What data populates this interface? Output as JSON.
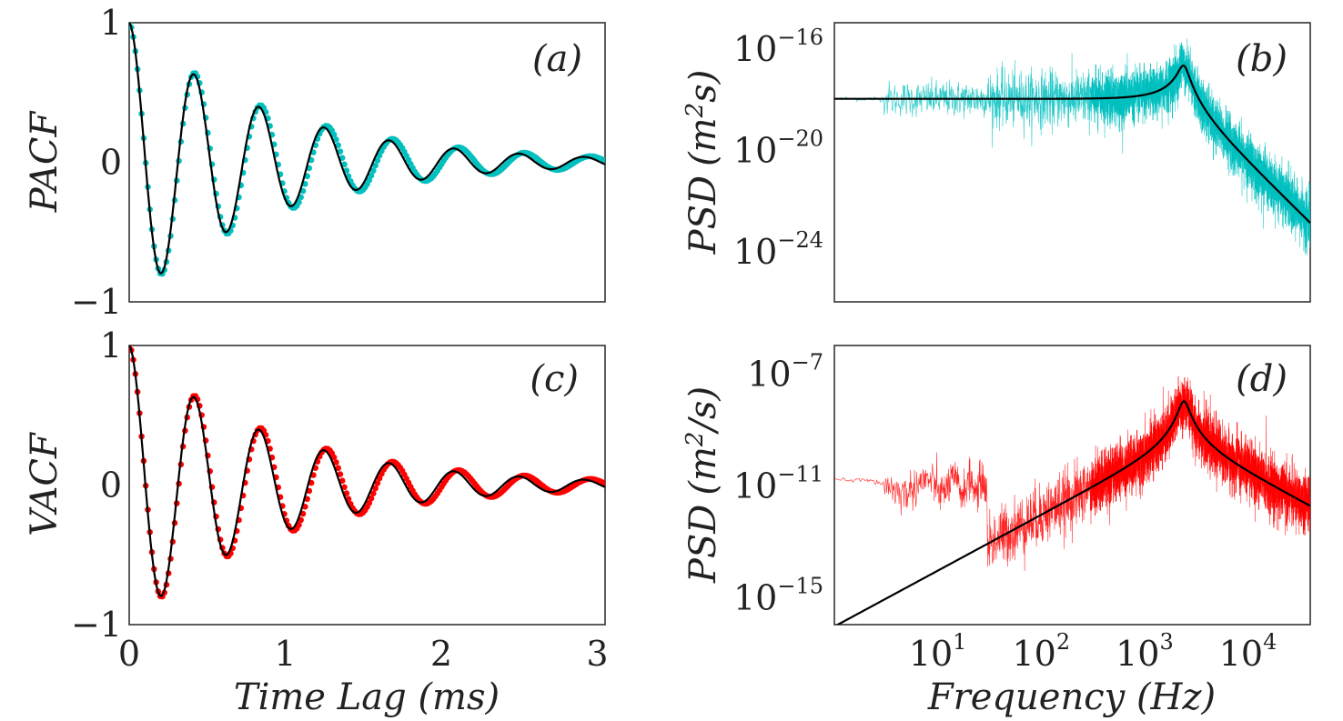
{
  "chart_data": [
    {
      "panel": "a",
      "type": "line",
      "label": "(a)",
      "ylabel": "PACF",
      "xlabel": "",
      "xlim": [
        0,
        3.05
      ],
      "ylim": [
        -1,
        1
      ],
      "yticks": [
        {
          "v": 1,
          "t": "1"
        },
        {
          "v": 0,
          "t": "0"
        },
        {
          "v": -1,
          "t": "−1"
        }
      ],
      "xticks": [],
      "model": {
        "description": "damped cosine",
        "amplitude": 1.0,
        "freq_kHz": 2.4,
        "decay_ms": 0.9
      },
      "series": [
        {
          "name": "data",
          "style": "markers",
          "color": "#00BFBF"
        },
        {
          "name": "fit",
          "style": "line",
          "color": "#000000"
        }
      ]
    },
    {
      "panel": "b",
      "type": "line",
      "label": "(b)",
      "ylabel_main": "PSD",
      "ylabel_unit": "(m",
      "ylabel_sup": "2",
      "ylabel_tail": "s)",
      "xlabel": "",
      "xscale": "log",
      "yscale": "log",
      "xlim": [
        1.0,
        40000
      ],
      "ylim": [
        1e-26,
        1e-15
      ],
      "yticks": [
        {
          "v": 1e-16,
          "base": "10",
          "exp": "−16"
        },
        {
          "v": 1e-20,
          "base": "10",
          "exp": "−20"
        },
        {
          "v": 1e-24,
          "base": "10",
          "exp": "−24"
        }
      ],
      "xticks": [],
      "model": {
        "low_freq_level": 1e-18,
        "resonance_Hz": 2400,
        "peak_level": 3e-17,
        "highfreq_slope": -4
      },
      "series": [
        {
          "name": "data",
          "style": "noisy-line",
          "color": "#00BFBF"
        },
        {
          "name": "fit",
          "style": "line",
          "color": "#000000"
        }
      ]
    },
    {
      "panel": "c",
      "type": "line",
      "label": "(c)",
      "ylabel": "VACF",
      "xlabel": "Time Lag (ms)",
      "xlim": [
        0,
        3.05
      ],
      "ylim": [
        -1,
        1
      ],
      "yticks": [
        {
          "v": 1,
          "t": "1"
        },
        {
          "v": 0,
          "t": "0"
        },
        {
          "v": -1,
          "t": "−1"
        }
      ],
      "xticks": [
        {
          "v": 0,
          "t": "0"
        },
        {
          "v": 1,
          "t": "1"
        },
        {
          "v": 2,
          "t": "2"
        },
        {
          "v": 3,
          "t": "3"
        }
      ],
      "model": {
        "description": "damped cosine",
        "amplitude": 1.0,
        "freq_kHz": 2.4,
        "decay_ms": 0.9
      },
      "series": [
        {
          "name": "data",
          "style": "markers",
          "color": "#FF0000"
        },
        {
          "name": "fit",
          "style": "line",
          "color": "#000000"
        }
      ]
    },
    {
      "panel": "d",
      "type": "line",
      "label": "(d)",
      "ylabel_main": "PSD",
      "ylabel_unit": "(m",
      "ylabel_sup": "2",
      "ylabel_tail": "/s)",
      "xlabel": "Frequency (Hz)",
      "xscale": "log",
      "yscale": "log",
      "xlim": [
        1.0,
        40000
      ],
      "ylim": [
        1e-16,
        1e-06
      ],
      "yticks": [
        {
          "v": 1e-07,
          "base": "10",
          "exp": "−7"
        },
        {
          "v": 1e-11,
          "base": "10",
          "exp": "−11"
        },
        {
          "v": 1e-15,
          "base": "10",
          "exp": "−15"
        }
      ],
      "xticks": [
        {
          "v": 10,
          "base": "10",
          "exp": "1"
        },
        {
          "v": 100,
          "base": "10",
          "exp": "2"
        },
        {
          "v": 1000,
          "base": "10",
          "exp": "3"
        },
        {
          "v": 10000,
          "base": "10",
          "exp": "4"
        }
      ],
      "model": {
        "lowfreq_slope": 2,
        "resonance_Hz": 2400,
        "peak_level": 1e-08
      },
      "series": [
        {
          "name": "data",
          "style": "noisy-line",
          "color": "#FF0000"
        },
        {
          "name": "fit",
          "style": "line",
          "color": "#000000"
        }
      ]
    }
  ]
}
